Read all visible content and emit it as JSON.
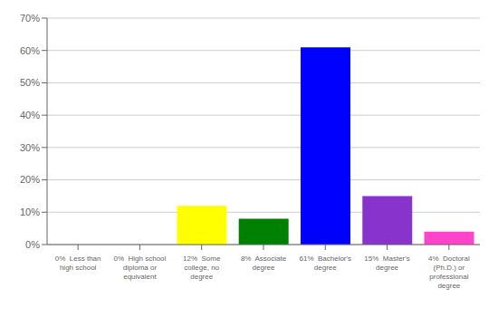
{
  "chart_data": {
    "type": "bar",
    "categories": [
      "0%  Less than\nhigh school",
      "0%  High school\ndiploma or\nequivalent",
      "12%  Some\ncollege, no\ndegree",
      "8%  Associate\ndegree",
      "61%  Bachelor's\ndegree",
      "15%  Master's\ndegree",
      "4%  Doctoral\n(Ph.D.) or\nprofessional\ndegree"
    ],
    "values": [
      0,
      0,
      12,
      8,
      61,
      15,
      4
    ],
    "colors": [
      "#ff0000",
      "#ff6600",
      "#ffff00",
      "#008000",
      "#0000ff",
      "#8833cc",
      "#ff44cc"
    ],
    "ylim": [
      0,
      70
    ],
    "yticks": [
      {
        "value": 0,
        "label": "0%"
      },
      {
        "value": 10,
        "label": "10%"
      },
      {
        "value": 20,
        "label": "20%"
      },
      {
        "value": 30,
        "label": "30%"
      },
      {
        "value": 40,
        "label": "40%"
      },
      {
        "value": 50,
        "label": "50%"
      },
      {
        "value": 60,
        "label": "60%"
      },
      {
        "value": 70,
        "label": "70%"
      }
    ],
    "grid": true
  }
}
